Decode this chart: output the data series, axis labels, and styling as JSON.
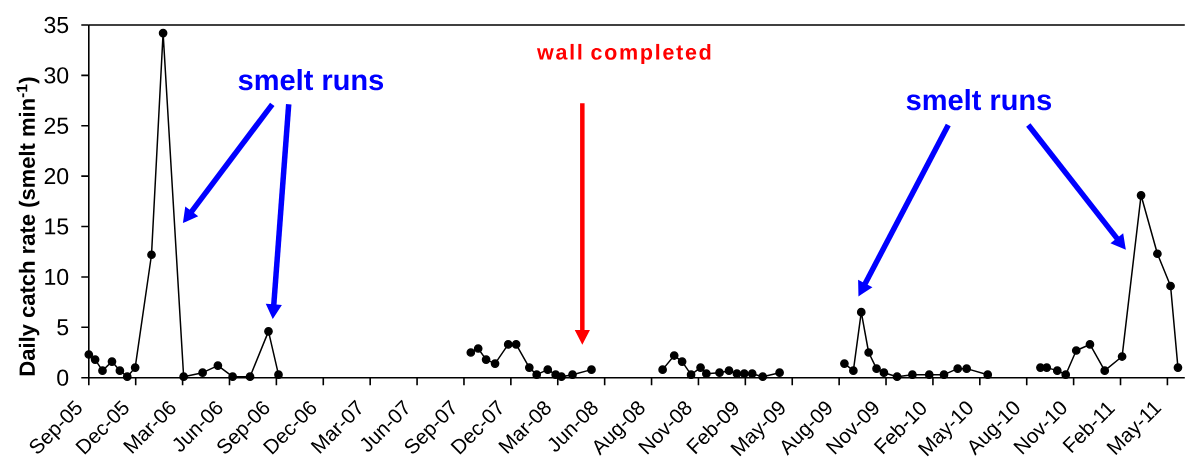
{
  "chart_data": {
    "type": "line",
    "ylabel": "Daily catch rate (smelt min$^{-1}$)",
    "x": [
      "2005-09-27",
      "2005-10-09",
      "2005-10-23",
      "2005-11-10",
      "2005-11-25",
      "2005-12-09",
      "2005-12-24",
      "2006-01-24",
      "2006-02-15",
      "2006-03-26",
      "2006-05-01",
      "2006-05-30",
      "2006-06-27",
      "2006-07-30",
      "2006-09-03",
      "2006-09-22",
      "2007-03-01",
      "2007-09-22",
      "2007-10-06",
      "2007-10-21",
      "2007-11-07",
      "2007-12-02",
      "2007-12-17",
      "2008-01-11",
      "2008-01-25",
      "2008-02-15",
      "2008-03-01",
      "2008-03-12",
      "2008-04-02",
      "2008-05-08",
      "2008-07-15",
      "2008-09-20",
      "2008-10-12",
      "2008-10-27",
      "2008-11-13",
      "2008-12-01",
      "2008-12-12",
      "2009-01-06",
      "2009-01-24",
      "2009-02-08",
      "2009-02-22",
      "2009-03-09",
      "2009-03-29",
      "2009-04-30",
      "2009-07-01",
      "2009-08-31",
      "2009-09-17",
      "2009-10-02",
      "2009-10-16",
      "2009-10-31",
      "2009-11-14",
      "2009-12-09",
      "2010-01-07",
      "2010-02-08",
      "2010-03-08",
      "2010-04-03",
      "2010-04-20",
      "2010-05-30",
      "2010-07-15",
      "2010-09-07",
      "2010-09-19",
      "2010-10-09",
      "2010-10-25",
      "2010-11-14",
      "2010-12-10",
      "2011-01-07",
      "2011-02-09",
      "2011-03-17",
      "2011-04-17",
      "2011-05-12",
      "2011-05-26"
    ],
    "values": [
      2.3,
      1.8,
      0.7,
      1.6,
      0.7,
      0.1,
      1.0,
      12.2,
      34.2,
      0.1,
      0.5,
      1.2,
      0.1,
      0.1,
      4.6,
      0.3,
      null,
      2.5,
      2.9,
      1.8,
      1.4,
      3.3,
      3.3,
      1.0,
      0.3,
      0.8,
      0.3,
      0.1,
      0.3,
      0.8,
      null,
      0.8,
      2.2,
      1.6,
      0.3,
      1.0,
      0.4,
      0.5,
      0.7,
      0.4,
      0.4,
      0.4,
      0.1,
      0.5,
      null,
      1.4,
      0.7,
      6.5,
      2.5,
      0.9,
      0.5,
      0.1,
      0.3,
      0.3,
      0.3,
      0.9,
      0.9,
      0.3,
      null,
      1.0,
      1.0,
      0.7,
      0.3,
      2.7,
      3.3,
      0.7,
      2.1,
      18.1,
      12.3,
      9.1,
      1.0
    ],
    "color": "#000000",
    "marker": "circle",
    "line_style": "solid",
    "xlim": [
      "2005-09-27",
      "2011-06-08"
    ],
    "xticks": [
      {
        "value": "2005-09-27",
        "label": "Sep-05"
      },
      {
        "value": "2005-12-25",
        "label": "Dec-05"
      },
      {
        "value": "2006-03-24",
        "label": "Mar-06"
      },
      {
        "value": "2006-06-21",
        "label": "Jun-06"
      },
      {
        "value": "2006-09-18",
        "label": "Sep-06"
      },
      {
        "value": "2006-12-16",
        "label": "Dec-06"
      },
      {
        "value": "2007-03-15",
        "label": "Mar-07"
      },
      {
        "value": "2007-06-12",
        "label": "Jun-07"
      },
      {
        "value": "2007-09-09",
        "label": "Sep-07"
      },
      {
        "value": "2007-12-07",
        "label": "Dec-07"
      },
      {
        "value": "2008-03-05",
        "label": "Mar-08"
      },
      {
        "value": "2008-06-02",
        "label": "Jun-08"
      },
      {
        "value": "2008-08-30",
        "label": "Aug-08"
      },
      {
        "value": "2008-11-27",
        "label": "Nov-08"
      },
      {
        "value": "2009-02-24",
        "label": "Feb-09"
      },
      {
        "value": "2009-05-24",
        "label": "May-09"
      },
      {
        "value": "2009-08-21",
        "label": "Aug-09"
      },
      {
        "value": "2009-11-18",
        "label": "Nov-09"
      },
      {
        "value": "2010-02-15",
        "label": "Feb-10"
      },
      {
        "value": "2010-05-15",
        "label": "May-10"
      },
      {
        "value": "2010-08-12",
        "label": "Aug-10"
      },
      {
        "value": "2010-11-09",
        "label": "Nov-10"
      },
      {
        "value": "2011-02-06",
        "label": "Feb-11"
      },
      {
        "value": "2011-05-06",
        "label": "May-11"
      }
    ],
    "ylim": [
      0,
      35
    ],
    "yticks": [
      0,
      5,
      10,
      15,
      20,
      25,
      30,
      35
    ],
    "annotations": [
      "smelt runs",
      "wall completed",
      "smelt runs"
    ]
  }
}
